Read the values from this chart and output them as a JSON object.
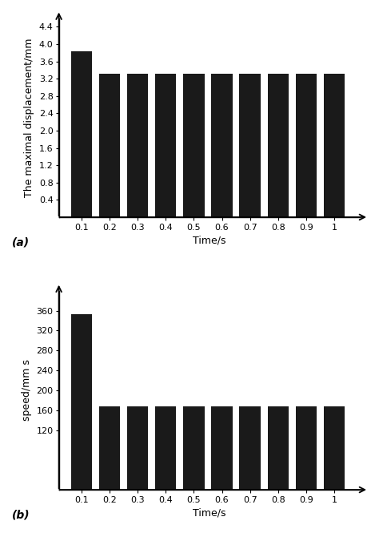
{
  "chart_a": {
    "x_values": [
      0.1,
      0.2,
      0.3,
      0.4,
      0.5,
      0.6,
      0.7,
      0.8,
      0.9,
      1.0
    ],
    "y_values": [
      3.84,
      3.32,
      3.32,
      3.32,
      3.32,
      3.32,
      3.32,
      3.32,
      3.32,
      3.32
    ],
    "ylabel": "The maximal displacement/mm",
    "xlabel": "Time/s",
    "label": "(a)",
    "ylim": [
      0,
      4.6
    ],
    "yticks": [
      0.4,
      0.8,
      1.2,
      1.6,
      2.0,
      2.4,
      2.8,
      3.2,
      3.6,
      4.0,
      4.4
    ],
    "ytick_labels": [
      "0.4",
      "0.8",
      "1.2",
      "1.6",
      "2.0",
      "2.4",
      "2.8",
      "3.2",
      "3.6",
      "4.0",
      "4.4"
    ],
    "bar_color": "#1a1a1a",
    "bar_width": 0.075
  },
  "chart_b": {
    "x_values": [
      0.1,
      0.2,
      0.3,
      0.4,
      0.5,
      0.6,
      0.7,
      0.8,
      0.9,
      1.0
    ],
    "y_values": [
      352,
      168,
      168,
      168,
      168,
      168,
      168,
      168,
      168,
      168
    ],
    "ylabel": "speed/mm s",
    "xlabel": "Time/s",
    "label": "(b)",
    "ylim": [
      0,
      400
    ],
    "yticks": [
      120,
      160,
      200,
      240,
      280,
      320,
      360
    ],
    "ytick_labels": [
      "120",
      "160",
      "200",
      "240",
      "280",
      "320",
      "360"
    ],
    "bar_color": "#1a1a1a",
    "bar_width": 0.075
  },
  "xticks": [
    0.1,
    0.2,
    0.3,
    0.4,
    0.5,
    0.6,
    0.7,
    0.8,
    0.9,
    1.0
  ],
  "xtick_labels": [
    "0.1",
    "0.2",
    "0.3",
    "0.4",
    "0.5",
    "0.6",
    "0.7",
    "0.8",
    "0.9",
    "1"
  ],
  "background_color": "#ffffff",
  "label_fontsize": 9,
  "tick_fontsize": 8
}
